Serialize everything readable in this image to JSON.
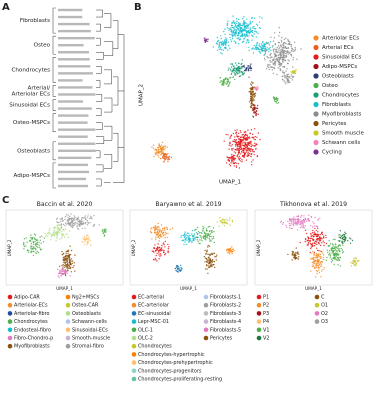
{
  "panel_labels": [
    "A",
    "B",
    "C"
  ],
  "dendrogram": {
    "groups": [
      {
        "lines": [
          "Fibroblasts"
        ]
      },
      {
        "lines": [
          "Osteo"
        ]
      },
      {
        "lines": [
          "Chondrocytes"
        ]
      },
      {
        "lines": [
          "Arterial/",
          "Arteriolar ECs"
        ]
      },
      {
        "lines": [
          "Sinusoidal ECs"
        ]
      },
      {
        "lines": [
          "Osteo-MSPCs"
        ]
      },
      {
        "lines": [
          "Osteoblasts"
        ]
      },
      {
        "lines": [
          "Adipo-MSPCs"
        ]
      }
    ]
  },
  "umap": {
    "x_label": "UMAP_1",
    "y_label": "UMAP_2",
    "legend": [
      {
        "name": "Arteriolar ECs",
        "color": "#f28e2b"
      },
      {
        "name": "Arterial ECs",
        "color": "#e8601c"
      },
      {
        "name": "Sinusoidal ECs",
        "color": "#e41a1c"
      },
      {
        "name": "Adipo-MSPCs",
        "color": "#a50f15"
      },
      {
        "name": "Osteoblasts",
        "color": "#2c3e70"
      },
      {
        "name": "Osteo",
        "color": "#4daf4a"
      },
      {
        "name": "Chondrocytes",
        "color": "#1b9e77"
      },
      {
        "name": "Fibroblasts",
        "color": "#17becf"
      },
      {
        "name": "Myofibroblasts",
        "color": "#8c8c8c"
      },
      {
        "name": "Pericytes",
        "color": "#8c510a"
      },
      {
        "name": "Smooth muscle",
        "color": "#c7c72a"
      },
      {
        "name": "Schwann cells",
        "color": "#f781bf"
      },
      {
        "name": "Cycling",
        "color": "#7b3294"
      }
    ]
  },
  "datasets": [
    {
      "title": "Baccin et al. 2020",
      "legend_columns": [
        [
          {
            "name": "Adipo-CAR",
            "color": "#e41a1c"
          },
          {
            "name": "Arteriolar-ECs",
            "color": "#f28e2b"
          },
          {
            "name": "Arteriolar-fibro",
            "color": "#1f4e9c"
          },
          {
            "name": "Chondrocytes",
            "color": "#4daf4a"
          },
          {
            "name": "Endosteal-fibro",
            "color": "#17becf"
          },
          {
            "name": "Fibro-Chondro-p",
            "color": "#e377c2"
          },
          {
            "name": "Myofibroblasts",
            "color": "#8c510a"
          }
        ],
        [
          {
            "name": "Ng2+MSCs",
            "color": "#ff7f00"
          },
          {
            "name": "Osteo-CAR",
            "color": "#c7c72a"
          },
          {
            "name": "Osteoblasts",
            "color": "#b2df8a"
          },
          {
            "name": "Schwann-cells",
            "color": "#aec7e8"
          },
          {
            "name": "Sinusoidal-ECs",
            "color": "#fdbf6f"
          },
          {
            "name": "Smooth-muscle",
            "color": "#cab2d6"
          },
          {
            "name": "Stromal-fibro",
            "color": "#9e9e9e"
          }
        ]
      ]
    },
    {
      "title": "Baryawno et al. 2019",
      "legend_columns": [
        [
          {
            "name": "EC-arterial",
            "color": "#e41a1c"
          },
          {
            "name": "EC-arteriolar",
            "color": "#f28e2b"
          },
          {
            "name": "EC-sinusoidal",
            "color": "#1f78b4"
          },
          {
            "name": "Lepr-MSC-01",
            "color": "#17becf"
          },
          {
            "name": "OLC-1",
            "color": "#4daf4a"
          },
          {
            "name": "OLC-2",
            "color": "#b2df8a"
          },
          {
            "name": "Chondrocytes",
            "color": "#c7c72a"
          },
          {
            "name": "Chondrocytes-hypertrophic",
            "color": "#ff7f00"
          },
          {
            "name": "Chondrocytes-prehypertrophic",
            "color": "#fdbf6f"
          },
          {
            "name": "Chondrocytes-progenitors",
            "color": "#8dd3c7"
          },
          {
            "name": "Chondrocytes-proliferating-resting",
            "color": "#66c2a5"
          }
        ],
        [
          {
            "name": "Fibroblasts-1",
            "color": "#aec7e8"
          },
          {
            "name": "Fibroblasts-2",
            "color": "#9e9e9e"
          },
          {
            "name": "Fibroblasts-3",
            "color": "#bdbdbd"
          },
          {
            "name": "Fibroblasts-4",
            "color": "#cab2d6"
          },
          {
            "name": "Fibroblasts-5",
            "color": "#e377c2"
          },
          {
            "name": "Pericytes",
            "color": "#8c510a"
          }
        ]
      ]
    },
    {
      "title": "Tikhonova et al. 2019",
      "legend_columns": [
        [
          {
            "name": "P1",
            "color": "#e41a1c"
          },
          {
            "name": "P2",
            "color": "#f28e2b"
          },
          {
            "name": "P3",
            "color": "#a50f15"
          },
          {
            "name": "P4",
            "color": "#fdbf6f"
          },
          {
            "name": "V1",
            "color": "#4daf4a"
          },
          {
            "name": "V2",
            "color": "#1b7837"
          }
        ],
        [
          {
            "name": "C",
            "color": "#8c510a"
          },
          {
            "name": "O1",
            "color": "#c7c72a"
          },
          {
            "name": "O2",
            "color": "#e377c2"
          },
          {
            "name": "O3",
            "color": "#9e9e9e"
          }
        ]
      ]
    }
  ]
}
